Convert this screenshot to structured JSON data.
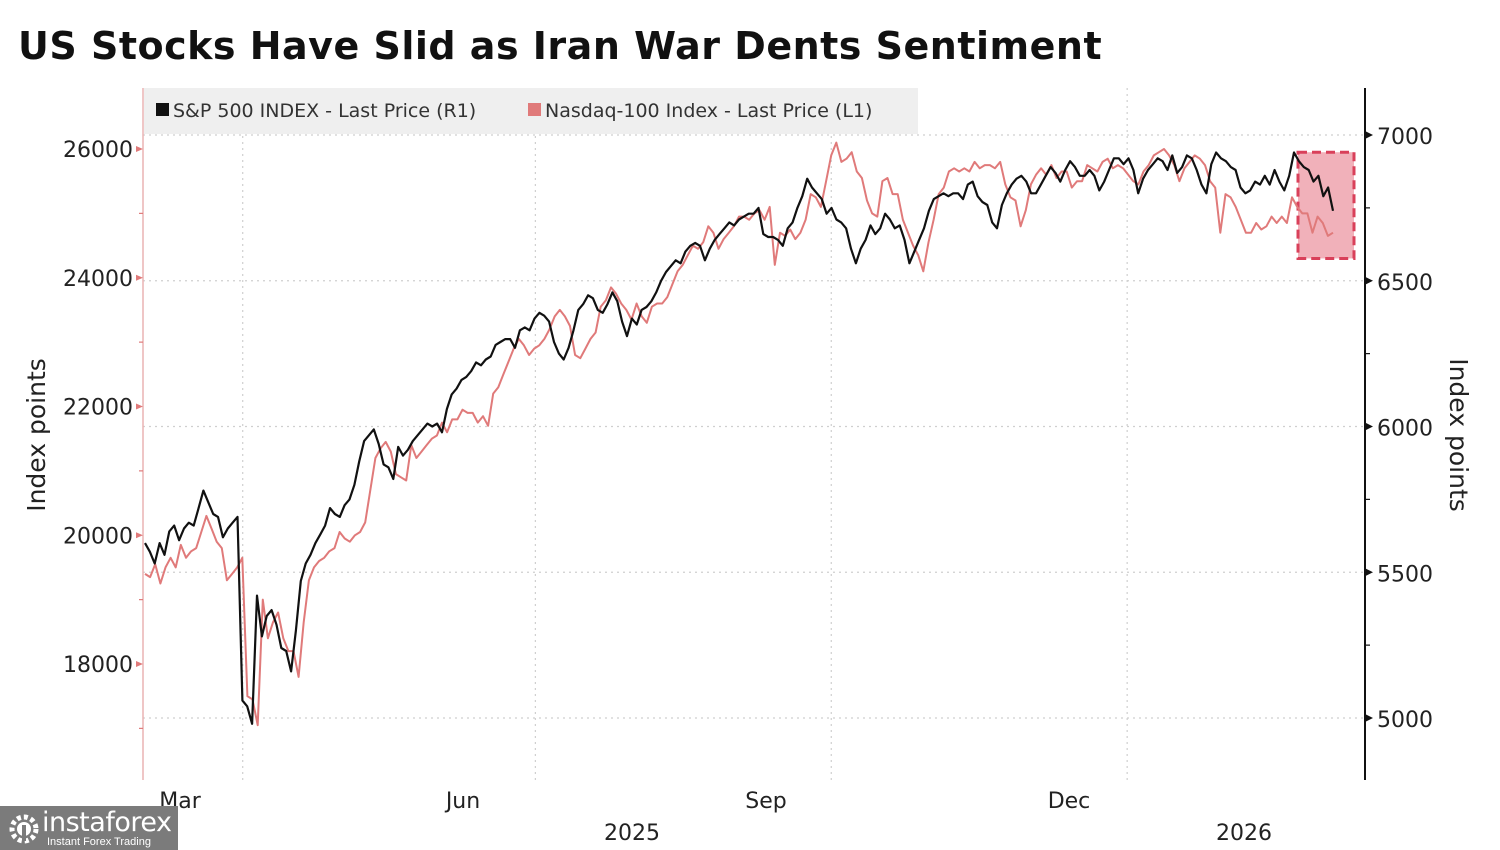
{
  "title": "US Stocks Have Slid as Iran War Dents Sentiment",
  "chart_data": {
    "type": "line",
    "title": "US Stocks Have Slid as Iran War Dents Sentiment",
    "legend_position": "top-left",
    "grid": true,
    "x_tick_labels": [
      "Mar",
      "Jun",
      "Sep",
      "Dec"
    ],
    "x_year_labels": [
      "2025",
      "2026"
    ],
    "x_range": [
      "2025-03-01",
      "2026-03-06"
    ],
    "left_axis": {
      "label": "Index points",
      "ticks": [
        18000,
        20000,
        22000,
        24000,
        26000
      ],
      "range": [
        16850,
        26250
      ],
      "color": "#e07a7a"
    },
    "right_axis": {
      "label": "Index points",
      "ticks": [
        5000,
        5500,
        6000,
        6500,
        7000
      ],
      "range": [
        4810,
        7190
      ],
      "color": "#111111"
    },
    "series": [
      {
        "name": "S&P 500 INDEX - Last Price (R1)",
        "axis": "right",
        "color": "#111111",
        "values": [
          5600,
          5570,
          5530,
          5600,
          5560,
          5640,
          5660,
          5610,
          5650,
          5670,
          5660,
          5720,
          5780,
          5740,
          5700,
          5690,
          5620,
          5650,
          5670,
          5690,
          5060,
          5040,
          4980,
          5420,
          5280,
          5350,
          5370,
          5320,
          5240,
          5230,
          5160,
          5300,
          5470,
          5530,
          5560,
          5600,
          5630,
          5660,
          5720,
          5700,
          5690,
          5730,
          5750,
          5800,
          5880,
          5950,
          5970,
          5990,
          5940,
          5870,
          5860,
          5820,
          5930,
          5900,
          5920,
          5950,
          5970,
          5990,
          6010,
          6000,
          6010,
          5980,
          6060,
          6110,
          6130,
          6160,
          6170,
          6190,
          6220,
          6210,
          6230,
          6240,
          6280,
          6290,
          6300,
          6300,
          6270,
          6330,
          6340,
          6330,
          6370,
          6390,
          6380,
          6360,
          6290,
          6250,
          6230,
          6270,
          6330,
          6400,
          6420,
          6450,
          6440,
          6400,
          6390,
          6420,
          6460,
          6430,
          6360,
          6310,
          6370,
          6350,
          6400,
          6410,
          6430,
          6460,
          6500,
          6530,
          6550,
          6570,
          6560,
          6600,
          6620,
          6630,
          6620,
          6570,
          6610,
          6640,
          6660,
          6680,
          6700,
          6690,
          6710,
          6720,
          6730,
          6730,
          6750,
          6660,
          6650,
          6650,
          6640,
          6620,
          6680,
          6700,
          6750,
          6790,
          6850,
          6820,
          6800,
          6780,
          6730,
          6750,
          6710,
          6700,
          6680,
          6610,
          6560,
          6610,
          6640,
          6690,
          6660,
          6680,
          6730,
          6710,
          6680,
          6690,
          6640,
          6560,
          6600,
          6640,
          6680,
          6740,
          6780,
          6790,
          6800,
          6790,
          6800,
          6800,
          6780,
          6830,
          6840,
          6790,
          6770,
          6760,
          6700,
          6680,
          6760,
          6800,
          6830,
          6850,
          6860,
          6840,
          6800,
          6800,
          6830,
          6860,
          6890,
          6870,
          6840,
          6880,
          6910,
          6890,
          6860,
          6860,
          6880,
          6860,
          6810,
          6840,
          6880,
          6920,
          6920,
          6900,
          6920,
          6880,
          6800,
          6850,
          6880,
          6900,
          6920,
          6910,
          6880,
          6930,
          6870,
          6890,
          6930,
          6920,
          6880,
          6830,
          6800,
          6900,
          6940,
          6920,
          6910,
          6890,
          6880,
          6820,
          6800,
          6810,
          6840,
          6830,
          6860,
          6830,
          6880,
          6840,
          6810,
          6860,
          6940,
          6910,
          6890,
          6880,
          6840,
          6860,
          6790,
          6820,
          6740
        ],
        "last_value_approx": 6740
      },
      {
        "name": "Nasdaq-100 Index - Last Price (L1)",
        "axis": "left",
        "color": "#e07a7a",
        "values": [
          19400,
          19350,
          19550,
          19250,
          19500,
          19650,
          19500,
          19850,
          19650,
          19750,
          19800,
          20050,
          20300,
          20100,
          19900,
          19800,
          19300,
          19400,
          19500,
          19650,
          17500,
          17450,
          17050,
          19000,
          18400,
          18650,
          18800,
          18400,
          18200,
          18200,
          17800,
          18650,
          19300,
          19500,
          19600,
          19650,
          19750,
          19800,
          20050,
          19950,
          19900,
          20000,
          20050,
          20200,
          20700,
          21200,
          21350,
          21450,
          21300,
          20950,
          20900,
          20850,
          21400,
          21200,
          21300,
          21400,
          21500,
          21550,
          21750,
          21600,
          21800,
          21800,
          21950,
          21900,
          21900,
          21750,
          21850,
          21700,
          22200,
          22300,
          22500,
          22700,
          22900,
          23050,
          22950,
          22800,
          22900,
          22950,
          23050,
          23200,
          23400,
          23500,
          23400,
          23250,
          22800,
          22750,
          22900,
          23050,
          23150,
          23550,
          23650,
          23850,
          23750,
          23600,
          23500,
          23350,
          23600,
          23400,
          23300,
          23550,
          23600,
          23600,
          23700,
          23900,
          24100,
          24200,
          24350,
          24500,
          24450,
          24550,
          24800,
          24700,
          24450,
          24600,
          24700,
          24800,
          24950,
          24950,
          24900,
          25000,
          25050,
          24900,
          25100,
          24200,
          24700,
          24650,
          24750,
          24600,
          24700,
          24900,
          25300,
          25250,
          25100,
          25500,
          25900,
          26100,
          25800,
          25850,
          25950,
          25650,
          25550,
          25200,
          25000,
          24950,
          25500,
          25550,
          25300,
          25300,
          24900,
          24700,
          24500,
          24350,
          24100,
          24550,
          24900,
          25300,
          25400,
          25650,
          25700,
          25650,
          25700,
          25650,
          25800,
          25700,
          25750,
          25750,
          25700,
          25800,
          25450,
          25250,
          25200,
          24800,
          25050,
          25450,
          25600,
          25700,
          25600,
          25750,
          25550,
          25650,
          25650,
          25400,
          25500,
          25500,
          25750,
          25700,
          25650,
          25800,
          25850,
          25700,
          25750,
          25700,
          25600,
          25500,
          25450,
          25650,
          25750,
          25900,
          25950,
          26000,
          25900,
          25750,
          25500,
          25700,
          25800,
          25900,
          25850,
          25750,
          25500,
          25400,
          24700,
          25300,
          25250,
          25100,
          24900,
          24700,
          24700,
          24850,
          24750,
          24800,
          24950,
          24850,
          24950,
          24850,
          25250,
          25100,
          25000,
          25000,
          24700,
          24950,
          24850,
          24650,
          24700
        ],
        "last_value_approx": 24700
      }
    ],
    "annotations": [
      {
        "type": "highlight-box",
        "style": "dashed",
        "color": "#d9405a",
        "x_range": [
          "2026-02-20",
          "2026-03-09"
        ],
        "left_axis_y_range": [
          24300,
          25950
        ]
      }
    ]
  },
  "legend": [
    {
      "label": "S&P 500 INDEX - Last Price (R1)",
      "color": "#111111"
    },
    {
      "label": "Nasdaq-100 Index - Last Price (L1)",
      "color": "#e07a7a"
    }
  ],
  "watermark": {
    "name": "instaforex",
    "tagline": "Instant Forex Trading"
  }
}
